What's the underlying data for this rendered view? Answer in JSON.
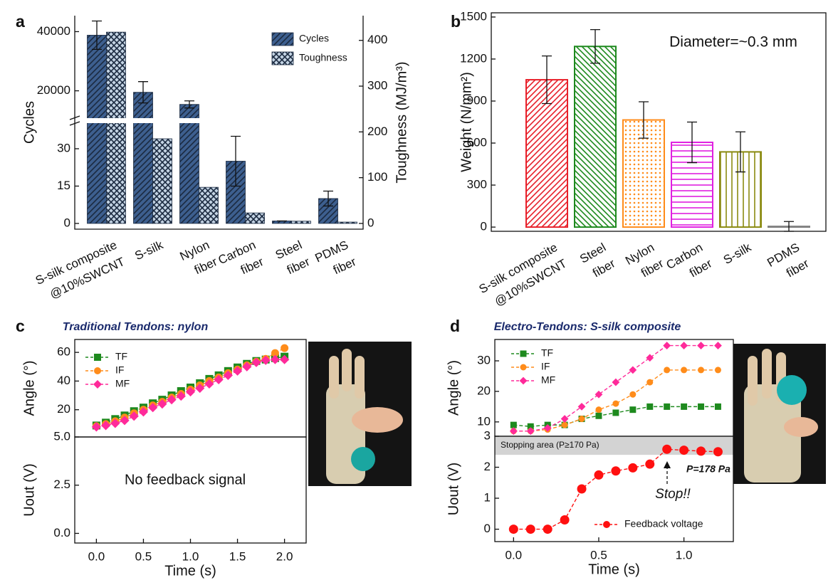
{
  "chart_data": [
    {
      "panel": "a",
      "type": "bar",
      "categories": [
        [
          "S-silk composite",
          "@10%SWCNT"
        ],
        [
          "S-silk"
        ],
        [
          "Nylon",
          "fiber"
        ],
        [
          "Carbon",
          "fiber"
        ],
        [
          "Steel",
          "fiber"
        ],
        [
          "PDMS",
          "fiber"
        ]
      ],
      "series": [
        {
          "name": "Cycles",
          "color": "#3d5f8f",
          "hatch": "diagonal",
          "values": [
            38800,
            19500,
            15400,
            25,
            1,
            10
          ],
          "errors": [
            4800,
            3600,
            1200,
            10,
            0,
            3
          ]
        },
        {
          "name": "Toughness",
          "color": "#c3d3e3",
          "hatch": "cross",
          "axis": "y2",
          "values": [
            418,
            185,
            79,
            23,
            5,
            3
          ]
        }
      ],
      "ylabel": "Cycles",
      "y2label": "Toughness (MJ/m³)",
      "ylim_segments": [
        [
          -2.3,
          40
        ],
        [
          11000,
          45400
        ]
      ],
      "yticks": [
        0,
        15,
        30,
        20000,
        40000
      ],
      "y2lim": [
        -12.5,
        454
      ],
      "y2ticks": [
        0,
        100,
        200,
        300,
        400
      ],
      "legend": "upper right"
    },
    {
      "panel": "b",
      "type": "bar",
      "categories": [
        [
          "S-silk composite",
          "@10%SWCNT"
        ],
        [
          "Steel",
          "fiber"
        ],
        [
          "Nylon",
          "fiber"
        ],
        [
          "Carbon",
          "fiber"
        ],
        [
          "S-silk"
        ],
        [
          "PDMS",
          "fiber"
        ]
      ],
      "values": [
        1052,
        1290,
        765,
        605,
        537,
        5
      ],
      "errors": [
        170,
        120,
        130,
        145,
        143,
        35
      ],
      "colors": [
        "#e8202a",
        "#1e8a1e",
        "#ff8c1a",
        "#e020e0",
        "#8a8a10",
        "#808080"
      ],
      "hatches": [
        "diagonal",
        "backdiagonal",
        "dots",
        "horizontal",
        "vertical",
        "horizontal"
      ],
      "ylabel": "Weight (N/mm²)",
      "ylim": [
        -30,
        1530
      ],
      "yticks": [
        0,
        300,
        600,
        900,
        1200,
        1500
      ],
      "annotation": "Diameter=~0.3 mm"
    },
    {
      "panel": "c",
      "title": "Traditional Tendons: nylon",
      "type": "line",
      "x": [
        0,
        0.1,
        0.2,
        0.3,
        0.4,
        0.5,
        0.6,
        0.7,
        0.8,
        0.9,
        1.0,
        1.1,
        1.2,
        1.3,
        1.4,
        1.5,
        1.6,
        1.7,
        1.8,
        1.9,
        2.0
      ],
      "series": [
        {
          "name": "TF",
          "color": "#1e8a1e",
          "marker": "square",
          "values": [
            9,
            11,
            13.5,
            16,
            19,
            21.5,
            24.5,
            27,
            30,
            33,
            35.5,
            38.5,
            41.5,
            44,
            47,
            49.5,
            52,
            54,
            55,
            56,
            57
          ]
        },
        {
          "name": "IF",
          "color": "#ff8c1a",
          "marker": "circle",
          "values": [
            8.5,
            10,
            12,
            14.5,
            17.5,
            20,
            23,
            25.5,
            28.5,
            31,
            34,
            37,
            40,
            42.5,
            45.5,
            48,
            51,
            53.5,
            55.5,
            59.5,
            63
          ]
        },
        {
          "name": "MF",
          "color": "#ff2a9a",
          "marker": "diamond",
          "values": [
            8,
            9,
            10.5,
            12.5,
            15.5,
            18.5,
            21.5,
            24,
            27,
            29.5,
            32.5,
            35,
            38,
            41,
            44,
            47,
            50,
            53,
            54.5,
            55,
            55
          ]
        }
      ],
      "ylabel": "Angle (°)",
      "xlim": [
        -0.23,
        2.23
      ],
      "ylim": [
        1,
        69
      ],
      "yticks": [
        20,
        40,
        60
      ],
      "legend": "upper left"
    },
    {
      "type": "line",
      "annotation": "No feedback signal",
      "xlabel": "Time (s)",
      "ylabel": "Uout (V)",
      "xlim": [
        -0.23,
        2.23
      ],
      "xticks": [
        {
          "value": 0,
          "label": "0.0"
        },
        {
          "value": 0.5,
          "label": "0.5"
        },
        {
          "value": 1,
          "label": "1.0"
        },
        {
          "value": 1.5,
          "label": "1.5"
        },
        {
          "value": 2,
          "label": "2.0"
        }
      ],
      "ylim": [
        -0.5,
        5
      ],
      "yticks": [
        {
          "value": 0,
          "label": "0.0"
        },
        {
          "value": 2.5,
          "label": "2.5"
        },
        {
          "value": 5,
          "label": "5.0"
        }
      ]
    },
    {
      "panel": "d",
      "title": "Electro-Tendons: S-silk composite",
      "type": "line",
      "x": [
        0,
        0.1,
        0.2,
        0.3,
        0.4,
        0.5,
        0.6,
        0.7,
        0.8,
        0.9,
        1.0,
        1.1,
        1.2
      ],
      "series": [
        {
          "name": "TF",
          "color": "#1e8a1e",
          "marker": "square",
          "values": [
            9,
            8.5,
            9,
            9,
            11,
            12,
            13,
            14,
            15,
            15,
            15,
            15,
            15
          ]
        },
        {
          "name": "IF",
          "color": "#ff8c1a",
          "marker": "circle",
          "values": [
            7,
            7,
            7.5,
            9,
            11,
            14,
            16,
            19,
            23,
            27,
            27,
            27,
            27
          ]
        },
        {
          "name": "MF",
          "color": "#ff2a9a",
          "marker": "diamond",
          "values": [
            7,
            7,
            8,
            11,
            15,
            19,
            23,
            27,
            31,
            35,
            35,
            35,
            35
          ]
        }
      ],
      "ylabel": "Angle (°)",
      "xlim": [
        -0.11,
        1.29
      ],
      "ylim": [
        5.3,
        37
      ],
      "yticks": [
        10,
        20,
        30
      ],
      "legend": "upper left"
    },
    {
      "type": "line",
      "x": [
        0,
        0.1,
        0.2,
        0.3,
        0.4,
        0.5,
        0.6,
        0.7,
        0.8,
        0.9,
        1.0,
        1.1,
        1.2
      ],
      "series": [
        {
          "name": "Feedback voltage",
          "color": "#ff1010",
          "marker": "circle",
          "values": [
            0,
            0,
            0,
            0.3,
            1.3,
            1.75,
            1.88,
            1.98,
            2.1,
            2.58,
            2.55,
            2.52,
            2.5
          ]
        }
      ],
      "shaded_band": {
        "range": [
          2.4,
          3
        ],
        "label": "Stopping area (P≥170 Pa)"
      },
      "annotations": [
        "P=178 Pa",
        "Stop!!"
      ],
      "xlabel": "Time (s)",
      "ylabel": "Uout (V)",
      "xlim": [
        -0.11,
        1.29
      ],
      "xticks": [
        {
          "value": 0,
          "label": "0.0"
        },
        {
          "value": 0.5,
          "label": "0.5"
        },
        {
          "value": 1,
          "label": "1.0"
        }
      ],
      "ylim": [
        -0.4,
        3
      ],
      "yticks": [
        0,
        1,
        2,
        3
      ],
      "legend": "lower right"
    }
  ]
}
